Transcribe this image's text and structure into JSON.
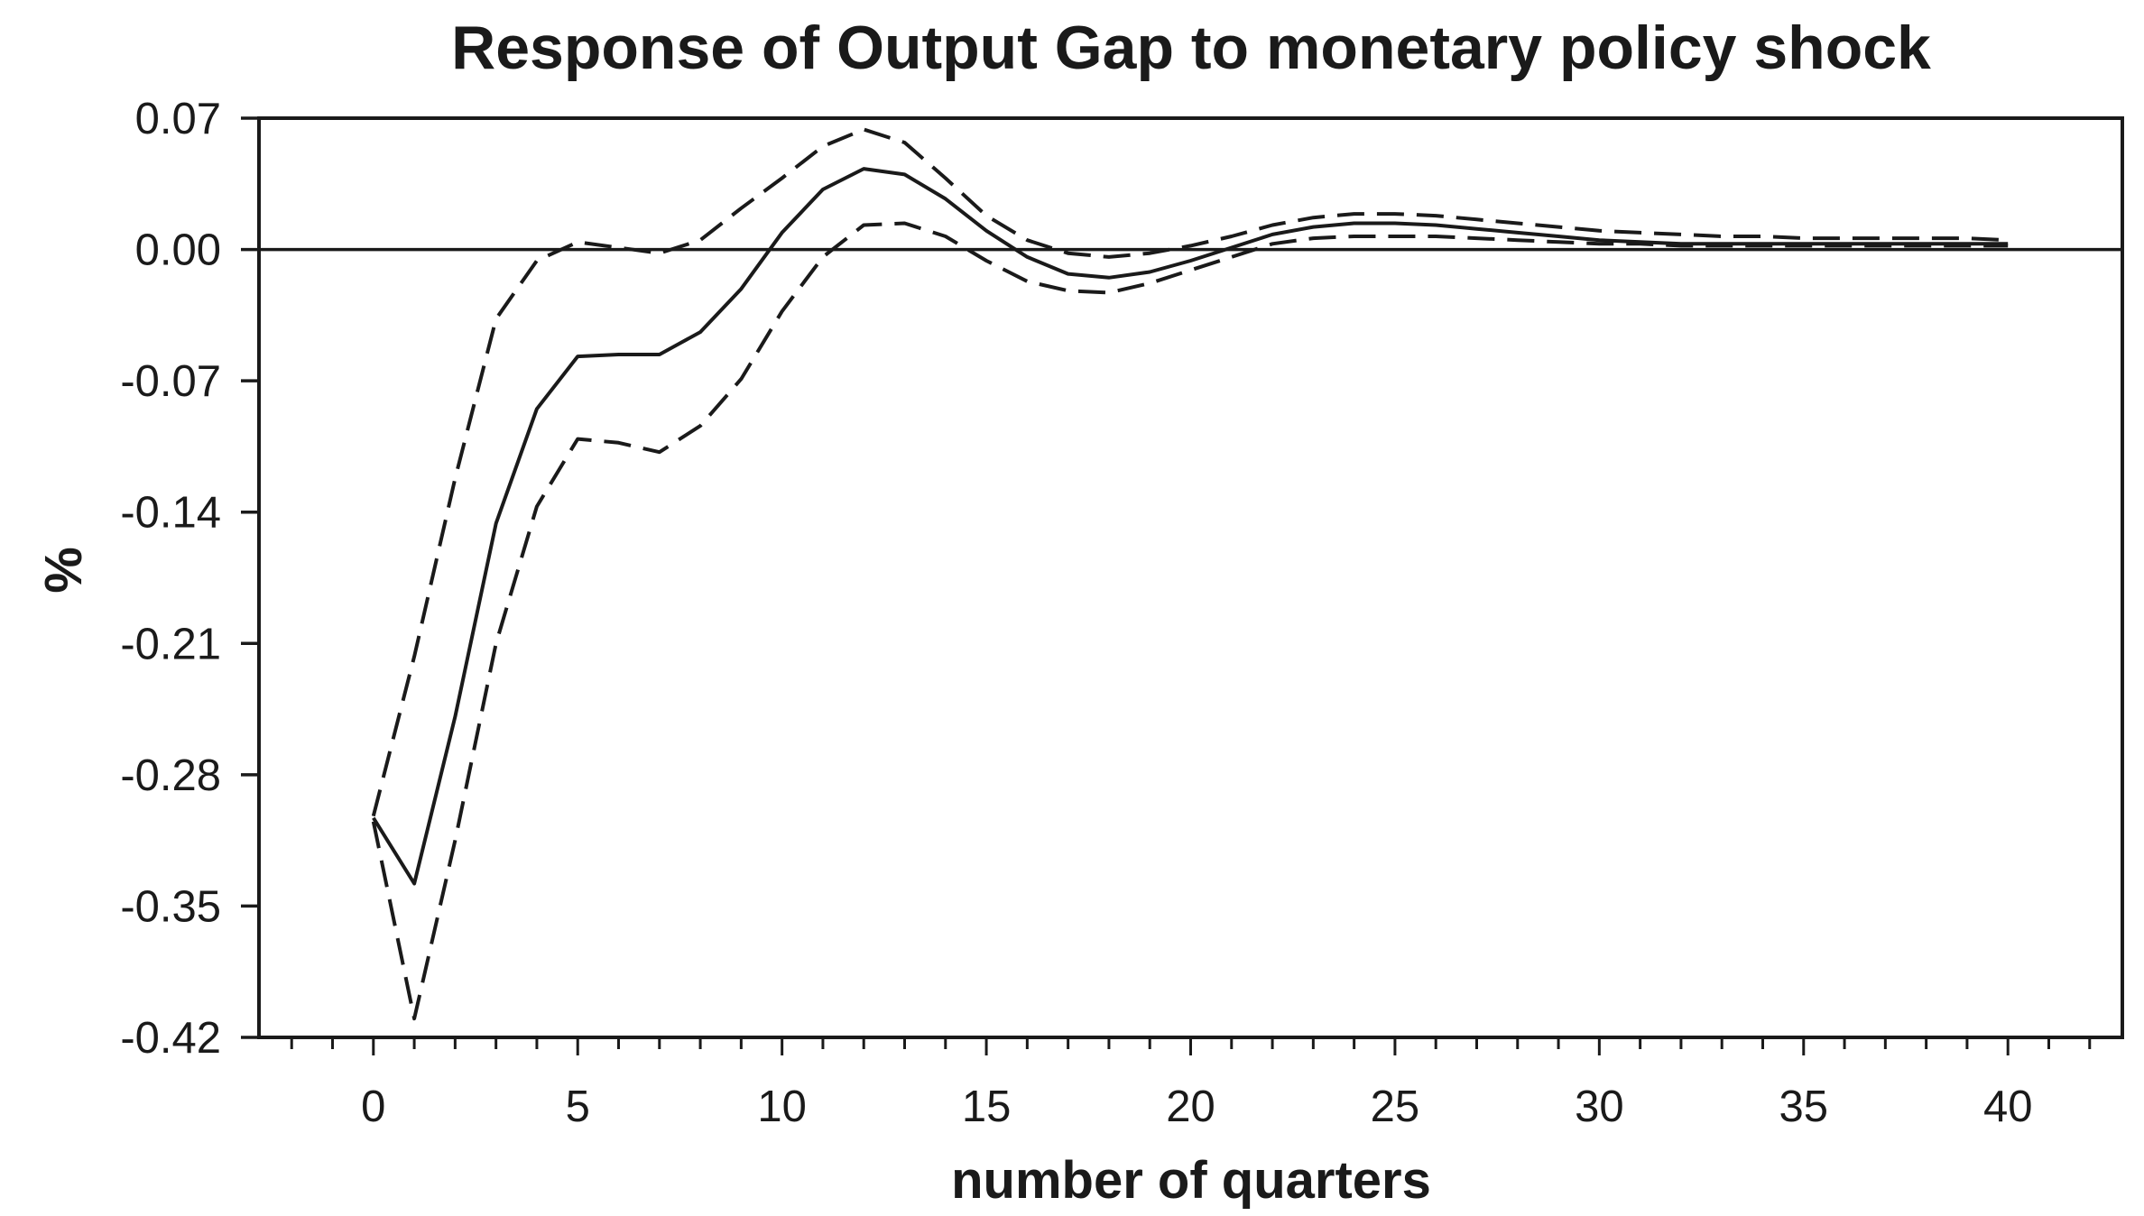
{
  "chart_data": {
    "type": "line",
    "title": "Response of Output Gap to monetary policy shock",
    "xlabel": "number of quarters",
    "ylabel": "%",
    "xlim": [
      -2.8,
      42.8
    ],
    "ylim": [
      -0.42,
      0.07
    ],
    "xticks": [
      0,
      5,
      10,
      15,
      20,
      25,
      30,
      35,
      40
    ],
    "xtick_labels": [
      "0",
      "5",
      "10",
      "15",
      "20",
      "25",
      "30",
      "35",
      "40"
    ],
    "yticks": [
      0.07,
      0.0,
      -0.07,
      -0.14,
      -0.21,
      -0.28,
      -0.35,
      -0.42
    ],
    "ytick_labels": [
      "0.07",
      "0.00",
      "-0.07",
      "-0.14",
      "-0.21",
      "-0.28",
      "-0.35",
      "-0.42"
    ],
    "zero_line": true,
    "grid": false,
    "legend": "none",
    "colors": {
      "line": "#1a1a1a",
      "frame": "#1a1a1a"
    },
    "x": [
      0,
      1,
      2,
      3,
      4,
      5,
      6,
      7,
      8,
      9,
      10,
      11,
      12,
      13,
      14,
      15,
      16,
      17,
      18,
      19,
      20,
      21,
      22,
      23,
      24,
      25,
      26,
      27,
      28,
      29,
      30,
      31,
      32,
      33,
      34,
      35,
      36,
      37,
      38,
      39,
      40
    ],
    "series": [
      {
        "style": "solid",
        "values": [
          -0.303,
          -0.338,
          -0.249,
          -0.146,
          -0.085,
          -0.057,
          -0.056,
          -0.056,
          -0.044,
          -0.021,
          0.009,
          0.032,
          0.043,
          0.04,
          0.027,
          0.01,
          -0.004,
          -0.013,
          -0.015,
          -0.012,
          -0.006,
          0.001,
          0.008,
          0.012,
          0.014,
          0.014,
          0.013,
          0.011,
          0.009,
          0.007,
          0.005,
          0.004,
          0.003,
          0.003,
          0.003,
          0.003,
          0.003,
          0.003,
          0.003,
          0.003,
          0.003
        ]
      },
      {
        "style": "dashed",
        "values": [
          -0.302,
          -0.217,
          -0.122,
          -0.037,
          -0.006,
          0.004,
          0.001,
          -0.002,
          0.005,
          0.022,
          0.038,
          0.055,
          0.064,
          0.057,
          0.038,
          0.018,
          0.005,
          -0.002,
          -0.004,
          -0.002,
          0.002,
          0.007,
          0.013,
          0.017,
          0.019,
          0.019,
          0.018,
          0.016,
          0.014,
          0.012,
          0.01,
          0.009,
          0.008,
          0.007,
          0.007,
          0.006,
          0.006,
          0.006,
          0.006,
          0.006,
          0.005
        ]
      },
      {
        "style": "dashed",
        "values": [
          -0.305,
          -0.41,
          -0.315,
          -0.21,
          -0.137,
          -0.101,
          -0.103,
          -0.108,
          -0.094,
          -0.069,
          -0.033,
          -0.004,
          0.013,
          0.014,
          0.007,
          -0.006,
          -0.017,
          -0.022,
          -0.023,
          -0.018,
          -0.011,
          -0.004,
          0.003,
          0.006,
          0.007,
          0.007,
          0.007,
          0.006,
          0.005,
          0.004,
          0.003,
          0.003,
          0.002,
          0.002,
          0.002,
          0.002,
          0.002,
          0.002,
          0.002,
          0.002,
          0.002
        ]
      }
    ]
  }
}
